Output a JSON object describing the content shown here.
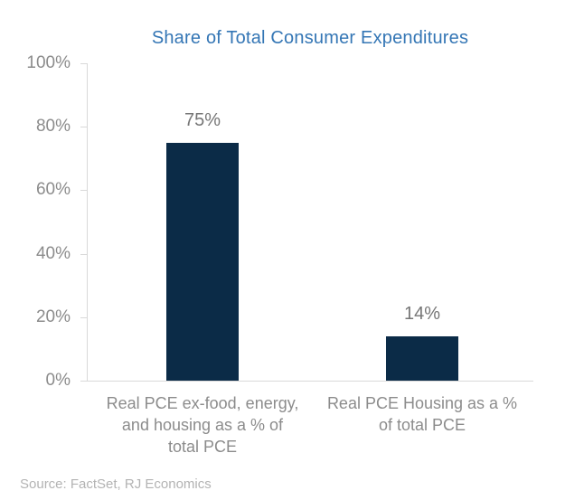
{
  "title": "Share of Total Consumer Expenditures",
  "source": "Source: FactSet, RJ Economics",
  "colors": {
    "title_text": "#3476B5",
    "bar_fill": "#0B2B47",
    "axis_line": "#D9D9D9",
    "axis_tick_label": "#8C8C8C",
    "value_label": "#767676",
    "category_label": "#8C8C8C",
    "source_text": "#B3B3B3"
  },
  "chart_data": {
    "type": "bar",
    "title": "Share of Total Consumer Expenditures",
    "categories": [
      "Real PCE ex-food, energy, and housing as a % of total PCE",
      "Real PCE Housing as a % of total PCE"
    ],
    "category_label_lines": [
      [
        "Real PCE ex-food, energy,",
        "and housing as a % of",
        "total PCE"
      ],
      [
        "Real PCE Housing as a %",
        "of total PCE"
      ]
    ],
    "values": [
      75,
      14
    ],
    "value_labels": [
      "75%",
      "14%"
    ],
    "xlabel": "",
    "ylabel": "",
    "ylim": [
      0,
      100
    ],
    "yticks": [
      0,
      20,
      40,
      60,
      80,
      100
    ],
    "ytick_labels": [
      "0%",
      "20%",
      "40%",
      "60%",
      "80%",
      "100%"
    ],
    "grid": false,
    "legend": false,
    "source": "Source: FactSet, RJ Economics"
  }
}
